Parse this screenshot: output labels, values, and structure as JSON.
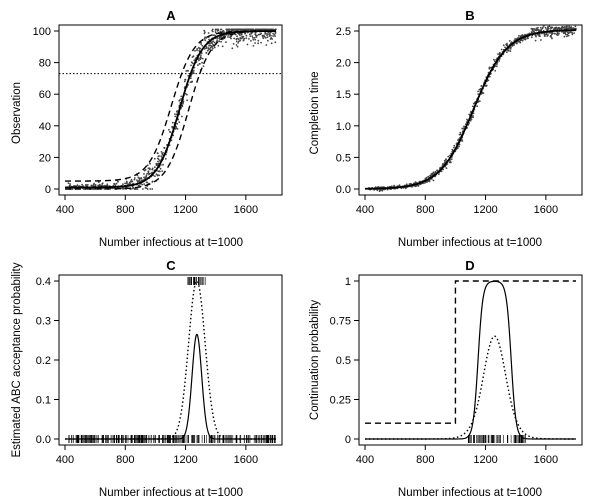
{
  "chart_data": [
    {
      "id": "A",
      "type": "scatter",
      "title": "A",
      "xlabel": "Number infectious at t=1000",
      "ylabel": "Observation",
      "xlim": [
        400,
        1800
      ],
      "ylim": [
        0,
        100
      ],
      "xticks": [
        400,
        800,
        1200,
        1600
      ],
      "yticks": [
        0,
        20,
        40,
        60,
        80,
        100
      ],
      "reference_line": {
        "y": 73,
        "style": "dotted"
      },
      "series": [
        {
          "name": "median",
          "style": "solid",
          "kind": "logistic",
          "low": 1,
          "high": 100,
          "mid": 1160,
          "scale": 75
        },
        {
          "name": "upper band",
          "style": "dashed",
          "kind": "logistic",
          "low": 5,
          "high": 100,
          "mid": 1105,
          "scale": 75
        },
        {
          "name": "lower band",
          "style": "dashed",
          "kind": "logistic",
          "low": 0,
          "high": 100,
          "mid": 1220,
          "scale": 75
        }
      ],
      "points": {
        "name": "simulated observations",
        "count": 900,
        "x_range": [
          420,
          1800
        ],
        "spread": 4
      }
    },
    {
      "id": "B",
      "type": "scatter",
      "title": "B",
      "xlabel": "Number infectious at t=1000",
      "ylabel": "Completion time",
      "xlim": [
        400,
        1800
      ],
      "ylim": [
        0,
        2.5
      ],
      "xticks": [
        400,
        800,
        1200,
        1600
      ],
      "yticks": [
        0.0,
        0.5,
        1.0,
        1.5,
        2.0,
        2.5
      ],
      "ytick_labels": [
        "0.0",
        "0.5",
        "1.0",
        "1.5",
        "2.0",
        "2.5"
      ],
      "series": [
        {
          "name": "fitted curve",
          "style": "solid",
          "kind": "logistic",
          "low": 0,
          "high": 2.52,
          "mid": 1120,
          "scale": 110
        }
      ],
      "points": {
        "name": "simulated completion times",
        "count": 900,
        "x_range": [
          420,
          1800
        ],
        "spread": 0.05
      }
    },
    {
      "id": "C",
      "type": "line",
      "title": "C",
      "xlabel": "Number infectious at t=1000",
      "ylabel": "Estimated ABC acceptance probability",
      "xlim": [
        400,
        1800
      ],
      "ylim": [
        0,
        0.4
      ],
      "xticks": [
        400,
        800,
        1200,
        1600
      ],
      "yticks": [
        0.0,
        0.1,
        0.2,
        0.3,
        0.4
      ],
      "ytick_labels": [
        "0.0",
        "0.1",
        "0.2",
        "0.3",
        "0.4"
      ],
      "series": [
        {
          "name": "acceptance (solid)",
          "style": "solid",
          "kind": "gauss",
          "peak": 0.265,
          "mu": 1275,
          "sigma": 32,
          "base": 0
        },
        {
          "name": "acceptance (dotted)",
          "style": "dotted",
          "kind": "gauss",
          "peak": 0.4,
          "mu": 1275,
          "sigma": 55,
          "base": 0
        }
      ],
      "rugs": [
        {
          "name": "rejected samples",
          "y": 0,
          "x_range": [
            420,
            1800
          ],
          "count": 260
        },
        {
          "name": "accepted samples",
          "y": 0.4,
          "x_range": [
            1215,
            1345
          ],
          "count": 28
        }
      ]
    },
    {
      "id": "D",
      "type": "line",
      "title": "D",
      "xlabel": "Number infectious at t=1000",
      "ylabel": "Continuation probability",
      "xlim": [
        400,
        1800
      ],
      "ylim": [
        0,
        1
      ],
      "xticks": [
        400,
        800,
        1200,
        1600
      ],
      "yticks": [
        0,
        0.25,
        0.5,
        0.75,
        1
      ],
      "ytick_labels": [
        "0",
        "0.25",
        "0.5",
        "0.75",
        "1"
      ],
      "series": [
        {
          "name": "step (dashed)",
          "style": "dashed",
          "kind": "step",
          "x0": 400,
          "xstep": 1000,
          "x1": 1800,
          "low": 0.1,
          "high": 1
        },
        {
          "name": "solid",
          "style": "solid",
          "kind": "plateau",
          "lo": 1150,
          "hi": 1370,
          "w": 16
        },
        {
          "name": "dotted",
          "style": "dotted",
          "kind": "plateau",
          "lo": 1200,
          "hi": 1320,
          "w": 42
        }
      ],
      "rugs": [
        {
          "name": "samples",
          "y": 0,
          "x_range": [
            1060,
            1470
          ],
          "count": 70
        }
      ]
    }
  ]
}
